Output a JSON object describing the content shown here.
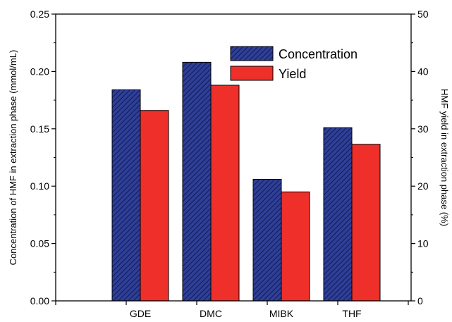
{
  "chart_data": {
    "type": "bar",
    "categories": [
      "GDE",
      "DMC",
      "MIBK",
      "THF"
    ],
    "series": [
      {
        "name": "Concentration",
        "axis": "left",
        "color": "#2f3f97",
        "pattern": "diagonal-hatch",
        "values": [
          0.184,
          0.208,
          0.106,
          0.151
        ]
      },
      {
        "name": "Yield",
        "axis": "right",
        "color": "#ee2f2a",
        "values": [
          33.2,
          37.6,
          19.0,
          27.3
        ]
      }
    ],
    "ylabel": "Concentration of HMF in extraction phase (mmol/mL)",
    "y2label": "HMF yield in extraction phase (%)",
    "ylim": [
      0,
      0.25
    ],
    "y2lim": [
      0,
      50
    ],
    "yticks": [
      "0.00",
      "0.05",
      "0.10",
      "0.15",
      "0.20",
      "0.25"
    ],
    "y2ticks": [
      "0",
      "10",
      "20",
      "30",
      "40",
      "50"
    ],
    "legend_position": "top-right",
    "grid": false
  }
}
